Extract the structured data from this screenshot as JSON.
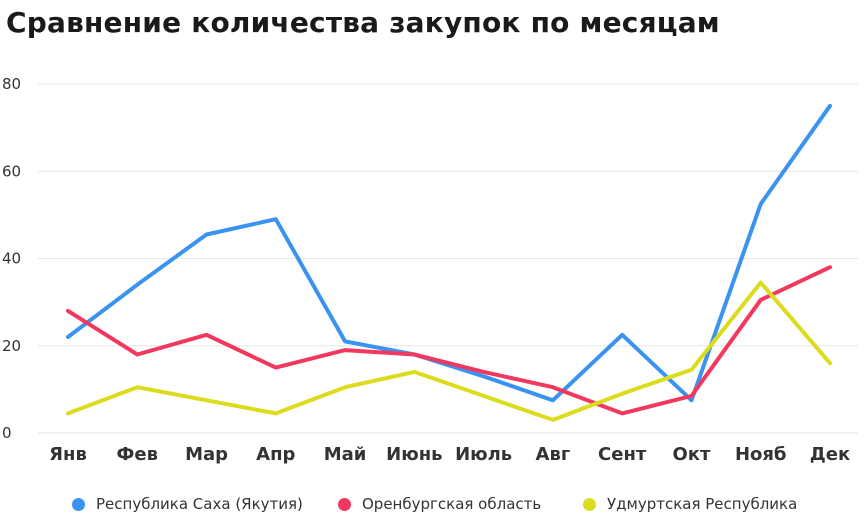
{
  "chart_data": {
    "type": "line",
    "title": "Сравнение количества закупок по месяцам",
    "xlabel": "",
    "ylabel": "",
    "categories": [
      "Янв",
      "Фев",
      "Мар",
      "Апр",
      "Май",
      "Июнь",
      "Июль",
      "Авг",
      "Сент",
      "Окт",
      "Нояб",
      "Дек"
    ],
    "ylim": [
      0,
      80
    ],
    "yticks": [
      0,
      20,
      40,
      60,
      80
    ],
    "grid": true,
    "legend_position": "bottom",
    "series": [
      {
        "name": "Республика Саха (Якутия)",
        "color": "#3a93f0",
        "values": [
          22,
          34,
          45.5,
          49,
          21,
          18,
          13,
          7.5,
          22.5,
          7.5,
          52.5,
          75
        ]
      },
      {
        "name": "Оренбургская область",
        "color": "#f2385e",
        "values": [
          28,
          18,
          22.5,
          15,
          19,
          18,
          14,
          10.5,
          4.5,
          8.5,
          30.5,
          38
        ]
      },
      {
        "name": "Удмуртская Республика",
        "color": "#dcdc1e",
        "values": [
          4.5,
          10.5,
          7.5,
          4.5,
          10.5,
          14,
          8.5,
          3,
          9,
          14.5,
          34.5,
          16
        ]
      }
    ]
  }
}
